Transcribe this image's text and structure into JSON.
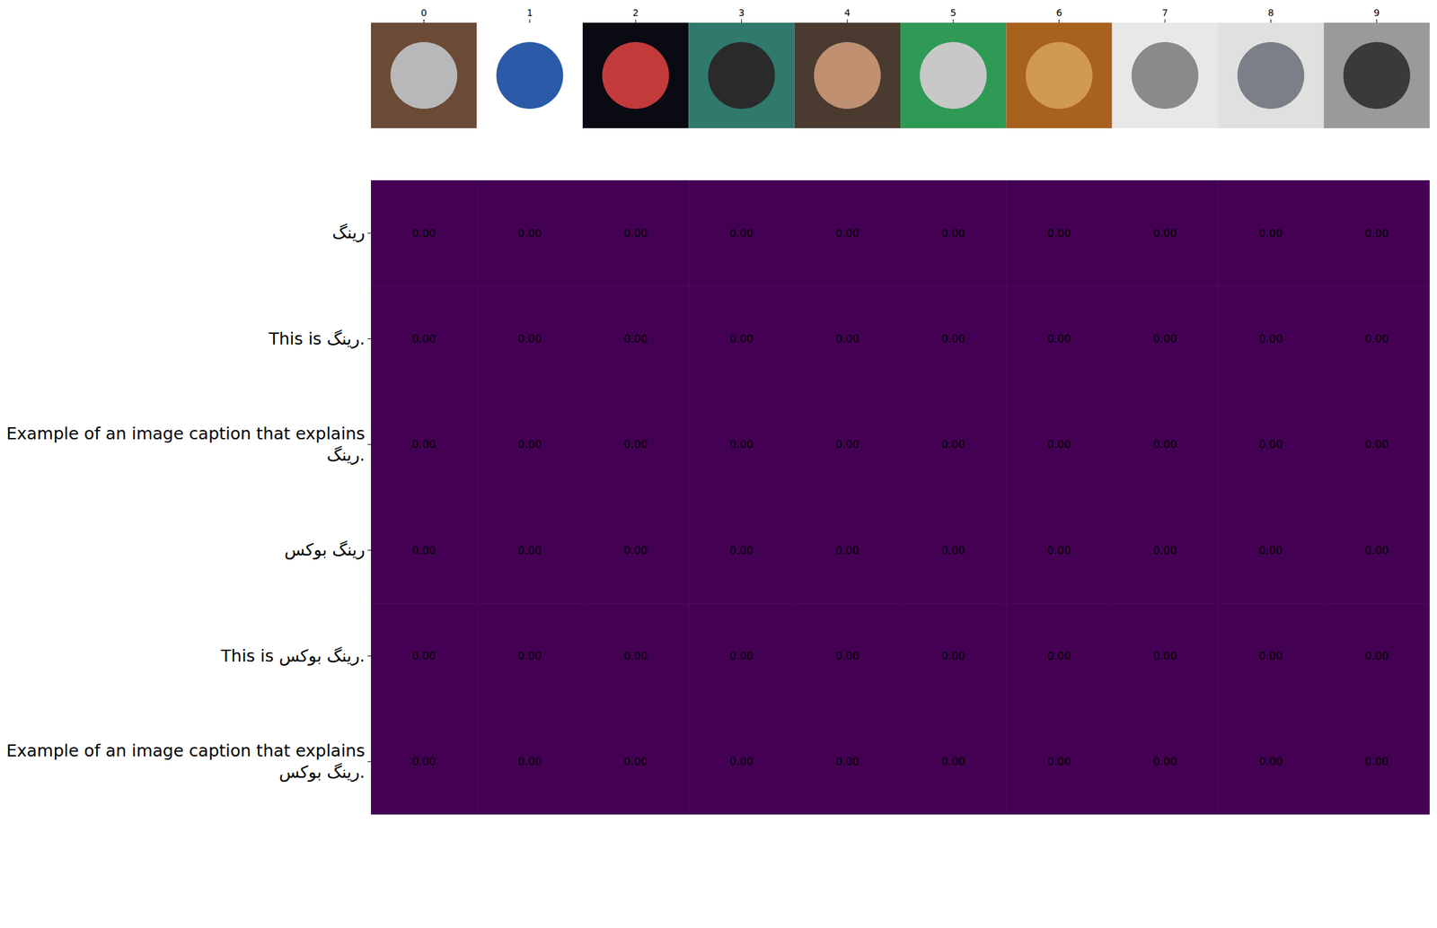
{
  "chart_data": {
    "type": "heatmap",
    "x": [
      0,
      1,
      2,
      3,
      4,
      5,
      6,
      7,
      8,
      9
    ],
    "xticks": [
      0,
      1,
      2,
      3,
      4,
      5,
      6,
      7,
      8,
      9
    ],
    "y": [
      "رینگ",
      "This is رینگ.",
      "Example of an image caption that explains رینگ.",
      "رینگ بوکس",
      "This is رینگ بوکس.",
      "Example of an image caption that explains رینگ بوکس."
    ],
    "cells": [
      [
        0,
        0,
        0,
        0,
        0,
        0,
        0,
        0,
        0,
        0
      ],
      [
        0,
        0,
        0,
        0,
        0,
        0,
        0,
        0,
        0,
        0
      ],
      [
        0,
        0,
        0,
        0,
        0,
        0,
        0,
        0,
        0,
        0
      ],
      [
        0,
        0,
        0,
        0,
        0,
        0,
        0,
        0,
        0,
        0
      ],
      [
        0,
        0,
        0,
        0,
        0,
        0,
        0,
        0,
        0,
        0
      ],
      [
        0,
        0,
        0,
        0,
        0,
        0,
        0,
        0,
        0,
        0
      ]
    ],
    "value_labels": [
      [
        "0.00",
        "0.00",
        "0.00",
        "0.00",
        "0.00",
        "0.00",
        "0.00",
        "0.00",
        "0.00",
        "0.00"
      ],
      [
        "0.00",
        "0.00",
        "0.00",
        "0.00",
        "0.00",
        "0.00",
        "0.00",
        "0.00",
        "0.00",
        "0.00"
      ],
      [
        "0.00",
        "0.00",
        "0.00",
        "0.00",
        "0.00",
        "0.00",
        "0.00",
        "0.00",
        "0.00",
        "0.00"
      ],
      [
        "0.00",
        "0.00",
        "0.00",
        "0.00",
        "0.00",
        "0.00",
        "0.00",
        "0.00",
        "0.00",
        "0.00"
      ],
      [
        "0.00",
        "0.00",
        "0.00",
        "0.00",
        "0.00",
        "0.00",
        "0.00",
        "0.00",
        "0.00",
        "0.00"
      ],
      [
        "0.00",
        "0.00",
        "0.00",
        "0.00",
        "0.00",
        "0.00",
        "0.00",
        "0.00",
        "0.00",
        "0.00"
      ]
    ],
    "data_labels": true,
    "color": "#440154"
  }
}
